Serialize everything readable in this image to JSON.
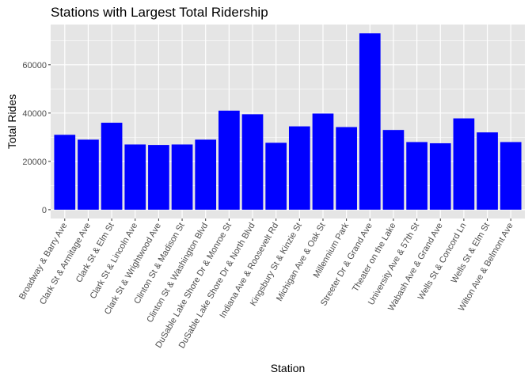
{
  "chart_data": {
    "type": "bar",
    "title": "Stations with Largest Total Ridership",
    "xlabel": "Station",
    "ylabel": "Total Rides",
    "categories": [
      "Broadway & Barry Ave",
      "Clark St & Armitage Ave",
      "Clark St & Elm St",
      "Clark St & Lincoln Ave",
      "Clark St & Wrightwood Ave",
      "Clinton St & Madison St",
      "Clinton St & Washington Blvd",
      "DuSable Lake Shore Dr & Monroe St",
      "DuSable Lake Shore Dr & North Blvd",
      "Indiana Ave & Roosevelt Rd",
      "Kingsbury St & Kinzie St",
      "Michigan Ave & Oak St",
      "Millennium Park",
      "Streeter Dr & Grand Ave",
      "Theater on the Lake",
      "University Ave & 57th St",
      "Wabash Ave & Grand Ave",
      "Wells St & Concord Ln",
      "Wells St & Elm St",
      "Wilton Ave & Belmont Ave"
    ],
    "values": [
      31000,
      29000,
      36000,
      27000,
      26800,
      27000,
      29000,
      41000,
      39500,
      27700,
      34500,
      39800,
      34200,
      73000,
      33000,
      28000,
      27500,
      37800,
      32000,
      28000
    ],
    "yticks": [
      0,
      20000,
      40000,
      60000
    ],
    "ytick_labels": [
      "0",
      "20000",
      "40000",
      "60000"
    ],
    "ylim": [
      -3650,
      76650
    ],
    "bar_color": "#0000ff",
    "panel_color": "#e5e5e5",
    "grid_color": "#ffffff",
    "grid": true,
    "legend": "none"
  }
}
